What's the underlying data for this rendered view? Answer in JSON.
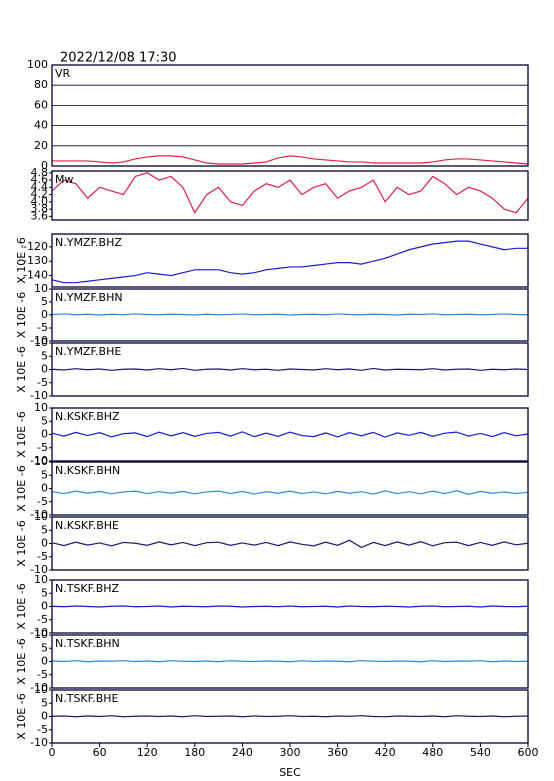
{
  "chart_data": [
    {
      "type": "line",
      "title": "2022/12/08 17:30",
      "x": [
        0,
        15,
        30,
        45,
        60,
        75,
        90,
        105,
        120,
        135,
        150,
        165,
        180,
        195,
        210,
        225,
        240,
        255,
        270,
        285,
        300,
        315,
        330,
        345,
        360,
        375,
        390,
        405,
        420,
        435,
        450,
        465,
        480,
        495,
        510,
        525,
        540,
        555,
        570,
        585,
        600
      ],
      "xlim": [
        0,
        600
      ],
      "ylim": [
        0,
        100
      ],
      "yticks": [
        0,
        20,
        40,
        60,
        80,
        100
      ],
      "grid": true,
      "series": [
        {
          "name": "VR",
          "color": "#e0204a",
          "values": [
            5,
            5,
            5,
            5,
            4,
            3,
            4,
            7,
            9,
            10,
            10,
            9,
            6,
            3,
            2,
            2,
            2,
            3,
            4,
            8,
            10,
            9,
            7,
            6,
            5,
            4,
            4,
            3,
            3,
            3,
            3,
            3,
            4,
            6,
            7,
            7,
            6,
            5,
            4,
            3,
            2
          ]
        }
      ]
    },
    {
      "type": "step",
      "x": [
        0,
        15,
        30,
        45,
        60,
        75,
        90,
        105,
        120,
        135,
        150,
        165,
        180,
        195,
        210,
        225,
        240,
        255,
        270,
        285,
        300,
        315,
        330,
        345,
        360,
        375,
        390,
        405,
        420,
        435,
        450,
        465,
        480,
        495,
        510,
        525,
        540,
        555,
        570,
        585,
        600
      ],
      "xlim": [
        0,
        600
      ],
      "ylim": [
        3.5,
        4.85
      ],
      "yticks": [
        3.6,
        3.8,
        {
          "value": 4,
          "label": "4.0"
        },
        4.2,
        4.4,
        4.6,
        4.8
      ],
      "series": [
        {
          "name": "Mw",
          "color": "#e0204a",
          "values": [
            4.3,
            4.6,
            4.5,
            4.1,
            4.4,
            4.3,
            4.2,
            4.7,
            4.8,
            4.6,
            4.7,
            4.4,
            3.7,
            4.2,
            4.4,
            4.0,
            3.9,
            4.3,
            4.5,
            4.4,
            4.6,
            4.2,
            4.4,
            4.5,
            4.1,
            4.3,
            4.4,
            4.6,
            4.0,
            4.4,
            4.2,
            4.3,
            4.7,
            4.5,
            4.2,
            4.4,
            4.3,
            4.1,
            3.8,
            3.7,
            4.1
          ]
        }
      ]
    },
    {
      "type": "line",
      "ylabel": "X 10E -6",
      "x": [
        0,
        15,
        30,
        45,
        60,
        75,
        90,
        105,
        120,
        135,
        150,
        165,
        180,
        195,
        210,
        225,
        240,
        255,
        270,
        285,
        300,
        315,
        330,
        345,
        360,
        375,
        390,
        405,
        420,
        435,
        450,
        465,
        480,
        495,
        510,
        525,
        540,
        555,
        570,
        585,
        600
      ],
      "xlim": [
        0,
        600
      ],
      "ylim": [
        -148,
        -111
      ],
      "yticks": [
        -140,
        -130,
        -120
      ],
      "series": [
        {
          "name": "N.YMZF.BHZ",
          "color": "#1a1ad0",
          "values": [
            -143,
            -145,
            -145,
            -144,
            -143,
            -142,
            -141,
            -140,
            -138,
            -139,
            -140,
            -138,
            -136,
            -136,
            -136,
            -138,
            -139,
            -138,
            -136,
            -135,
            -134,
            -134,
            -133,
            -132,
            -131,
            -131,
            -132,
            -130,
            -128,
            -125,
            -122,
            -120,
            -118,
            -117,
            -116,
            -116,
            -118,
            -120,
            -122,
            -121,
            -121
          ]
        }
      ]
    },
    {
      "type": "line",
      "ylabel": "X 10E -6",
      "x": [
        0,
        15,
        30,
        45,
        60,
        75,
        90,
        105,
        120,
        135,
        150,
        165,
        180,
        195,
        210,
        225,
        240,
        255,
        270,
        285,
        300,
        315,
        330,
        345,
        360,
        375,
        390,
        405,
        420,
        435,
        450,
        465,
        480,
        495,
        510,
        525,
        540,
        555,
        570,
        585,
        600
      ],
      "xlim": [
        0,
        600
      ],
      "ylim": [
        -10,
        10
      ],
      "yticks": [
        -10,
        -5,
        0,
        5,
        10
      ],
      "series": [
        {
          "name": "N.YMZF.BHN",
          "color": "#2a8ae0",
          "values": [
            0.2,
            0.4,
            0.1,
            0.3,
            0.0,
            0.3,
            0.1,
            0.4,
            0.2,
            0.1,
            0.3,
            0.2,
            0.0,
            0.3,
            0.1,
            0.2,
            0.4,
            0.1,
            0.2,
            0.3,
            0.0,
            0.2,
            0.3,
            0.1,
            0.4,
            0.2,
            0.1,
            0.3,
            0.2,
            0.0,
            0.3,
            0.2,
            0.4,
            0.1,
            0.2,
            0.3,
            0.1,
            0.2,
            0.4,
            0.2,
            0.1
          ]
        }
      ]
    },
    {
      "type": "line",
      "ylabel": "X 10E -6",
      "x": [
        0,
        15,
        30,
        45,
        60,
        75,
        90,
        105,
        120,
        135,
        150,
        165,
        180,
        195,
        210,
        225,
        240,
        255,
        270,
        285,
        300,
        315,
        330,
        345,
        360,
        375,
        390,
        405,
        420,
        435,
        450,
        465,
        480,
        495,
        510,
        525,
        540,
        555,
        570,
        585,
        600
      ],
      "xlim": [
        0,
        600
      ],
      "ylim": [
        -10,
        10
      ],
      "yticks": [
        -10,
        -5,
        0,
        5,
        10
      ],
      "series": [
        {
          "name": "N.YMZF.BHE",
          "color": "#1a1a70",
          "values": [
            0.1,
            -0.2,
            0.3,
            -0.1,
            0.2,
            -0.3,
            0.1,
            0.2,
            -0.2,
            0.3,
            -0.1,
            0.4,
            -0.3,
            0.1,
            0.2,
            -0.2,
            0.3,
            -0.1,
            0.1,
            -0.3,
            0.2,
            0.0,
            -0.2,
            0.3,
            -0.1,
            0.2,
            -0.3,
            0.4,
            -0.2,
            0.1,
            0.0,
            -0.1,
            0.3,
            -0.2,
            0.1,
            0.2,
            -0.3,
            0.1,
            -0.1,
            0.2,
            0.0
          ]
        }
      ]
    },
    {
      "type": "line",
      "ylabel": "X 10E -6",
      "x": [
        0,
        15,
        30,
        45,
        60,
        75,
        90,
        105,
        120,
        135,
        150,
        165,
        180,
        195,
        210,
        225,
        240,
        255,
        270,
        285,
        300,
        315,
        330,
        345,
        360,
        375,
        390,
        405,
        420,
        435,
        450,
        465,
        480,
        495,
        510,
        525,
        540,
        555,
        570,
        585,
        600
      ],
      "xlim": [
        0,
        600
      ],
      "ylim": [
        -10,
        10
      ],
      "yticks": [
        -10,
        -5,
        0,
        5,
        10
      ],
      "series": [
        {
          "name": "N.KSKF.BHZ",
          "color": "#1a1ad0",
          "values": [
            0.5,
            -0.6,
            0.8,
            -0.4,
            0.7,
            -0.9,
            0.3,
            0.6,
            -0.8,
            0.9,
            -0.5,
            0.7,
            -0.7,
            0.4,
            0.8,
            -0.6,
            1.0,
            -0.8,
            0.5,
            -0.7,
            0.9,
            -0.4,
            -0.8,
            0.6,
            -0.9,
            0.7,
            -0.5,
            0.8,
            -1.0,
            0.6,
            -0.3,
            0.8,
            -0.7,
            0.5,
            0.9,
            -0.6,
            0.4,
            -0.8,
            0.7,
            -0.5,
            0.2
          ]
        }
      ]
    },
    {
      "type": "line",
      "ylabel": "X 10E -6",
      "x": [
        0,
        15,
        30,
        45,
        60,
        75,
        90,
        105,
        120,
        135,
        150,
        165,
        180,
        195,
        210,
        225,
        240,
        255,
        270,
        285,
        300,
        315,
        330,
        345,
        360,
        375,
        390,
        405,
        420,
        435,
        450,
        465,
        480,
        495,
        510,
        525,
        540,
        555,
        570,
        585,
        600
      ],
      "xlim": [
        0,
        600
      ],
      "ylim": [
        -10,
        10
      ],
      "yticks": [
        -10,
        -5,
        0,
        5,
        10
      ],
      "series": [
        {
          "name": "N.KSKF.BHN",
          "color": "#2a8ae0",
          "values": [
            -1.2,
            -1.9,
            -1.0,
            -1.8,
            -1.1,
            -2.0,
            -1.3,
            -1.0,
            -1.9,
            -1.2,
            -1.8,
            -1.1,
            -2.0,
            -1.3,
            -1.0,
            -1.9,
            -1.1,
            -2.1,
            -1.2,
            -1.8,
            -1.0,
            -1.9,
            -1.3,
            -2.0,
            -1.1,
            -1.8,
            -1.2,
            -2.1,
            -0.9,
            -1.9,
            -1.2,
            -2.0,
            -1.0,
            -1.9,
            -0.8,
            -2.2,
            -1.1,
            -1.8,
            -1.3,
            -1.9,
            -1.4
          ]
        }
      ]
    },
    {
      "type": "line",
      "ylabel": "X 10E -6",
      "x": [
        0,
        15,
        30,
        45,
        60,
        75,
        90,
        105,
        120,
        135,
        150,
        165,
        180,
        195,
        210,
        225,
        240,
        255,
        270,
        285,
        300,
        315,
        330,
        345,
        360,
        375,
        390,
        405,
        420,
        435,
        450,
        465,
        480,
        495,
        510,
        525,
        540,
        555,
        570,
        585,
        600
      ],
      "xlim": [
        0,
        600
      ],
      "ylim": [
        -10,
        10
      ],
      "yticks": [
        -10,
        -5,
        0,
        5,
        10
      ],
      "series": [
        {
          "name": "N.KSKF.BHE",
          "color": "#1a1a70",
          "values": [
            0.3,
            -0.8,
            0.5,
            -0.6,
            0.2,
            -0.9,
            0.4,
            0.1,
            -0.7,
            0.6,
            -0.5,
            0.4,
            -0.8,
            0.3,
            0.5,
            -0.7,
            0.2,
            -0.6,
            0.4,
            -0.8,
            0.6,
            -0.3,
            -0.9,
            0.5,
            -0.7,
            1.2,
            -1.5,
            0.4,
            -0.8,
            0.6,
            -0.6,
            0.7,
            -0.9,
            0.3,
            0.5,
            -0.8,
            0.4,
            -0.7,
            0.6,
            -0.5,
            0.1
          ]
        }
      ]
    },
    {
      "type": "line",
      "ylabel": "X 10E -6",
      "x": [
        0,
        15,
        30,
        45,
        60,
        75,
        90,
        105,
        120,
        135,
        150,
        165,
        180,
        195,
        210,
        225,
        240,
        255,
        270,
        285,
        300,
        315,
        330,
        345,
        360,
        375,
        390,
        405,
        420,
        435,
        450,
        465,
        480,
        495,
        510,
        525,
        540,
        555,
        570,
        585,
        600
      ],
      "xlim": [
        0,
        600
      ],
      "ylim": [
        -10,
        10
      ],
      "yticks": [
        -10,
        -5,
        0,
        5,
        10
      ],
      "series": [
        {
          "name": "N.TSKF.BHZ",
          "color": "#1a1ad0",
          "values": [
            0.1,
            -0.1,
            0.2,
            0.0,
            -0.2,
            0.1,
            0.2,
            -0.1,
            0.0,
            0.2,
            -0.2,
            0.1,
            0.0,
            -0.1,
            0.2,
            0.1,
            -0.2,
            0.0,
            0.1,
            -0.1,
            0.2,
            -0.1,
            0.0,
            0.1,
            -0.2,
            0.2,
            0.0,
            -0.1,
            0.1,
            0.0,
            -0.2,
            0.1,
            0.2,
            -0.1,
            0.0,
            0.1,
            -0.2,
            0.2,
            0.0,
            -0.1,
            0.1
          ]
        }
      ]
    },
    {
      "type": "line",
      "ylabel": "X 10E -6",
      "x": [
        0,
        15,
        30,
        45,
        60,
        75,
        90,
        105,
        120,
        135,
        150,
        165,
        180,
        195,
        210,
        225,
        240,
        255,
        270,
        285,
        300,
        315,
        330,
        345,
        360,
        375,
        390,
        405,
        420,
        435,
        450,
        465,
        480,
        495,
        510,
        525,
        540,
        555,
        570,
        585,
        600
      ],
      "xlim": [
        0,
        600
      ],
      "ylim": [
        -10,
        10
      ],
      "yticks": [
        -10,
        -5,
        0,
        5,
        10
      ],
      "series": [
        {
          "name": "N.TSKF.BHN",
          "color": "#2a8ae0",
          "values": [
            0.2,
            0.0,
            0.3,
            -0.1,
            0.2,
            0.1,
            0.3,
            0.0,
            0.2,
            -0.1,
            0.3,
            0.1,
            0.0,
            0.2,
            -0.1,
            0.3,
            0.1,
            0.0,
            0.2,
            0.1,
            -0.1,
            0.3,
            0.0,
            0.2,
            0.1,
            -0.1,
            0.3,
            0.1,
            0.0,
            0.2,
            0.1,
            -0.1,
            0.3,
            0.0,
            0.2,
            0.1,
            0.3,
            -0.1,
            0.2,
            0.0,
            0.1
          ]
        }
      ]
    },
    {
      "type": "line",
      "ylabel": "X 10E -6",
      "xlabel": "SEC",
      "x": [
        0,
        15,
        30,
        45,
        60,
        75,
        90,
        105,
        120,
        135,
        150,
        165,
        180,
        195,
        210,
        225,
        240,
        255,
        270,
        285,
        300,
        315,
        330,
        345,
        360,
        375,
        390,
        405,
        420,
        435,
        450,
        465,
        480,
        495,
        510,
        525,
        540,
        555,
        570,
        585,
        600
      ],
      "xlim": [
        0,
        600
      ],
      "xticks": [
        0,
        60,
        120,
        180,
        240,
        300,
        360,
        420,
        480,
        540,
        600
      ],
      "ylim": [
        -10,
        10
      ],
      "yticks": [
        -10,
        -5,
        0,
        5,
        10
      ],
      "series": [
        {
          "name": "N.TSKF.BHE",
          "color": "#1a1a70",
          "values": [
            0.1,
            0.2,
            -0.1,
            0.2,
            0.0,
            0.3,
            -0.1,
            0.1,
            0.2,
            0.0,
            0.2,
            -0.1,
            0.3,
            0.0,
            0.1,
            0.2,
            -0.1,
            0.2,
            0.0,
            0.1,
            0.3,
            0.0,
            0.1,
            -0.1,
            0.2,
            0.1,
            0.3,
            0.0,
            -0.1,
            0.2,
            0.1,
            0.0,
            0.2,
            -0.1,
            0.3,
            0.1,
            0.0,
            0.2,
            -0.1,
            0.1,
            0.2
          ]
        }
      ]
    }
  ]
}
